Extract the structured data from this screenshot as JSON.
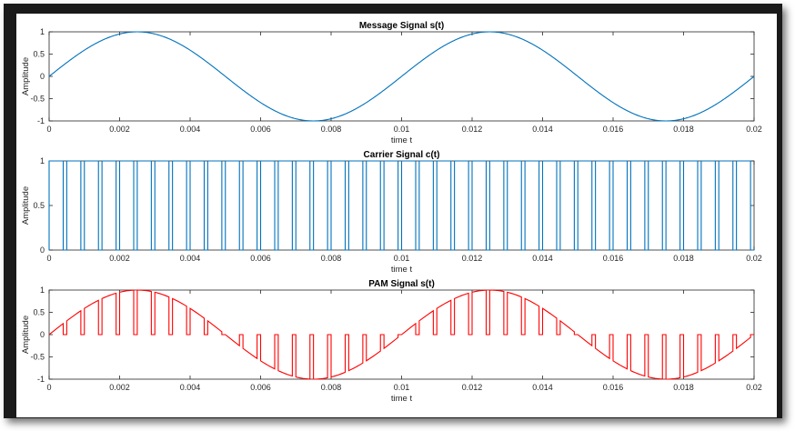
{
  "chart_data": [
    {
      "type": "line",
      "title": "Message Signal s(t)",
      "xlabel": "time t",
      "ylabel": "Amplitude",
      "xlim": [
        0,
        0.02
      ],
      "ylim": [
        -1,
        1
      ],
      "xticks": [
        "0",
        "0.002",
        "0.004",
        "0.006",
        "0.008",
        "0.01",
        "0.012",
        "0.014",
        "0.016",
        "0.018",
        "0.02"
      ],
      "yticks": [
        "1",
        "0.5",
        "0",
        "-0.5",
        "-1"
      ],
      "color": "#0072bd",
      "signal": "sine",
      "frequency_hz": 100,
      "series": [
        {
          "x": [
            0,
            0.0025,
            0.005,
            0.0075,
            0.01,
            0.0125,
            0.015,
            0.0175,
            0.02
          ],
          "values": [
            0,
            1,
            0,
            -1,
            0,
            1,
            0,
            -1,
            0
          ]
        }
      ]
    },
    {
      "type": "line",
      "title": "Carrier Signal c(t)",
      "xlabel": "time t",
      "ylabel": "Amplitude",
      "xlim": [
        0,
        0.02
      ],
      "ylim": [
        0,
        1
      ],
      "xticks": [
        "0",
        "0.002",
        "0.004",
        "0.006",
        "0.008",
        "0.01",
        "0.012",
        "0.014",
        "0.016",
        "0.018",
        "0.02"
      ],
      "yticks": [
        "1",
        "0.5",
        "0"
      ],
      "color": "#0072bd",
      "signal": "pulse train",
      "period": 0.0005,
      "high_duration": 0.0004,
      "high_value": 1,
      "low_value": 0
    },
    {
      "type": "line",
      "title": "PAM Signal s(t)",
      "xlabel": "time t",
      "ylabel": "Amplitude",
      "xlim": [
        0,
        0.02
      ],
      "ylim": [
        -1,
        1
      ],
      "xticks": [
        "0",
        "0.002",
        "0.004",
        "0.006",
        "0.008",
        "0.01",
        "0.012",
        "0.014",
        "0.016",
        "0.018",
        "0.02"
      ],
      "yticks": [
        "1",
        "0.5",
        "0",
        "-0.5",
        "-1"
      ],
      "color": "#ff0000",
      "signal": "message multiplied by carrier",
      "period": 0.0005,
      "high_duration": 0.0004
    }
  ]
}
